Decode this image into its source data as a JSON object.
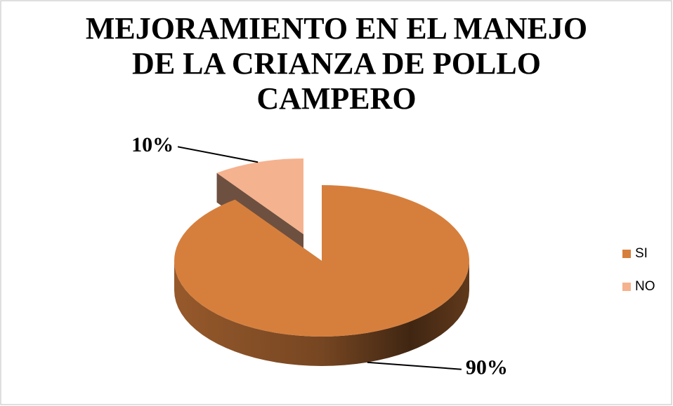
{
  "chart_data": {
    "type": "pie",
    "title": "MEJORAMIENTO EN EL MANEJO DE LA CRIANZA DE POLLO CAMPERO",
    "categories": [
      "SI",
      "NO"
    ],
    "values": [
      90,
      10
    ],
    "value_labels": [
      "90%",
      "10%"
    ],
    "colors": [
      "#d67f3d",
      "#f5b28e"
    ],
    "legend": "right"
  }
}
